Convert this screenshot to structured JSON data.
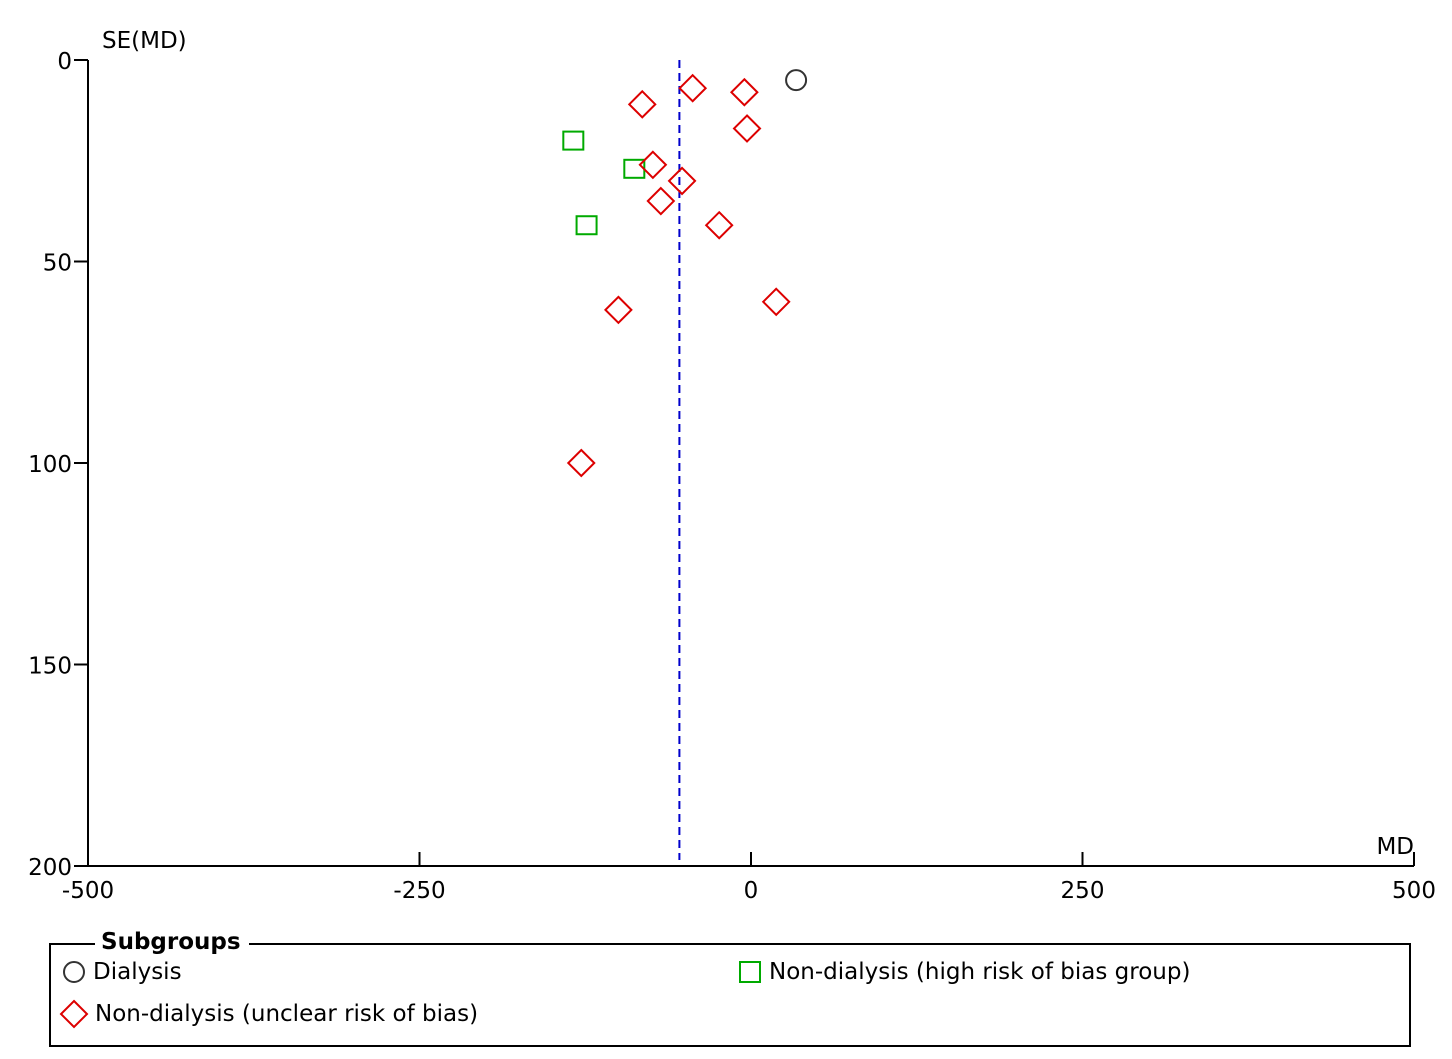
{
  "chart_data": {
    "type": "scatter",
    "xlabel": "MD",
    "ylabel": "SE(MD)",
    "xlim": [
      -500,
      500
    ],
    "ylim": [
      0,
      200
    ],
    "y_inverted": true,
    "x_ticks": [
      "-500",
      "-250",
      "0",
      "250",
      "500"
    ],
    "y_ticks": [
      "0",
      "50",
      "100",
      "150",
      "200"
    ],
    "reference_line": {
      "x": -54,
      "style": "dashed",
      "color": "#0000CC"
    },
    "legend": {
      "title": "Subgroups",
      "placement": "bottom"
    },
    "series": [
      {
        "name": "Dialysis",
        "marker": "circle",
        "color": "#333333",
        "points": [
          {
            "x": 34,
            "y": 5
          }
        ]
      },
      {
        "name": "Non-dialysis (high risk of bias group)",
        "marker": "square",
        "color": "#00AA00",
        "points": [
          {
            "x": -134,
            "y": 20
          },
          {
            "x": -88,
            "y": 27
          },
          {
            "x": -124,
            "y": 41
          }
        ]
      },
      {
        "name": "Non-dialysis (unclear risk of bias)",
        "marker": "diamond",
        "color": "#DD0000",
        "points": [
          {
            "x": -44,
            "y": 7
          },
          {
            "x": -5,
            "y": 8
          },
          {
            "x": -82,
            "y": 11
          },
          {
            "x": -3,
            "y": 17
          },
          {
            "x": -74,
            "y": 26
          },
          {
            "x": -52,
            "y": 30
          },
          {
            "x": -68,
            "y": 35
          },
          {
            "x": -24,
            "y": 41
          },
          {
            "x": 19,
            "y": 60
          },
          {
            "x": -100,
            "y": 62
          },
          {
            "x": -128,
            "y": 100
          }
        ]
      }
    ]
  }
}
